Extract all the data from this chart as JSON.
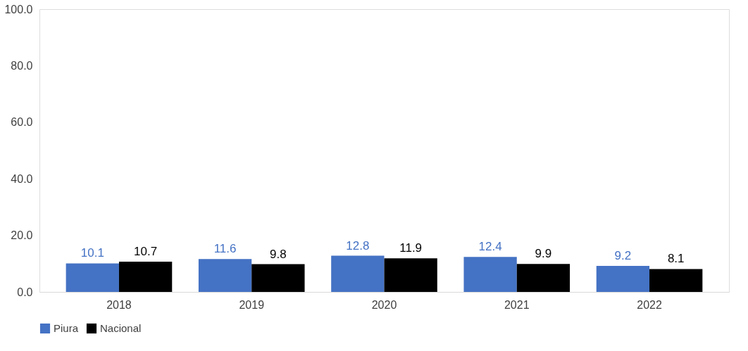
{
  "chart_data": {
    "type": "bar",
    "categories": [
      "2018",
      "2019",
      "2020",
      "2021",
      "2022"
    ],
    "series": [
      {
        "name": "Piura",
        "color": "#4472c4",
        "values": [
          10.1,
          11.6,
          12.8,
          12.4,
          9.2
        ]
      },
      {
        "name": "Nacional",
        "color": "#000000",
        "values": [
          10.7,
          9.8,
          11.9,
          9.9,
          8.1
        ]
      }
    ],
    "ylim": [
      0,
      100
    ],
    "yticks": [
      {
        "value": 0,
        "label": "0.0"
      },
      {
        "value": 20,
        "label": "20.0"
      },
      {
        "value": 40,
        "label": "40.0"
      },
      {
        "value": 60,
        "label": "60.0"
      },
      {
        "value": 80,
        "label": "80.0"
      },
      {
        "value": 100,
        "label": "100.0"
      }
    ],
    "data_labels": true,
    "legend": "bottom",
    "grid": false
  }
}
